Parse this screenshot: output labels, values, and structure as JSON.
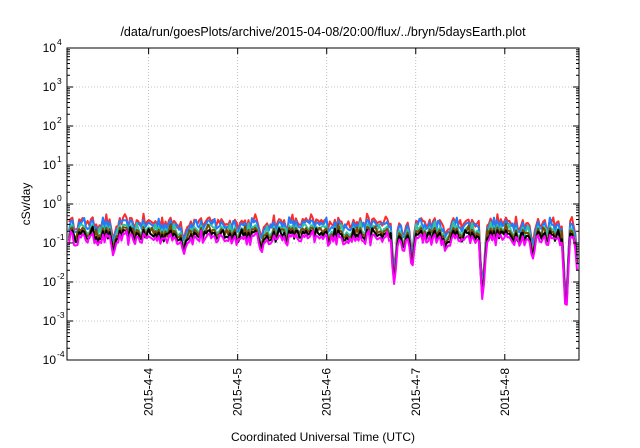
{
  "chart_data": {
    "type": "line",
    "title": "/data/run/goesPlots/archive/2015-04-08/20:00/flux/../bryn/5daysEarth.plot",
    "xlabel": "Coordinated Universal Time (UTC)",
    "ylabel": "cSv/day",
    "yscale": "log",
    "ylim": [
      0.0001,
      10000
    ],
    "xlim": [
      "2015-04-03T02:00",
      "2015-04-08T20:00"
    ],
    "grid": true,
    "legend": "none",
    "x_ticks": [
      "2015-4-4",
      "2015-4-5",
      "2015-4-6",
      "2015-4-7",
      "2015-4-8"
    ],
    "y_ticks": [
      {
        "base": "10",
        "exp": "-4"
      },
      {
        "base": "10",
        "exp": "-3"
      },
      {
        "base": "10",
        "exp": "-2"
      },
      {
        "base": "10",
        "exp": "-1"
      },
      {
        "base": "10",
        "exp": "0"
      },
      {
        "base": "10",
        "exp": "1"
      },
      {
        "base": "10",
        "exp": "2"
      },
      {
        "base": "10",
        "exp": "3"
      },
      {
        "base": "10",
        "exp": "4"
      }
    ],
    "series": [
      {
        "color": "#ff2a2a",
        "level": 0.34
      },
      {
        "color": "#1e7cff",
        "level": 0.29
      },
      {
        "color": "#2ec4a0",
        "level": 0.22
      },
      {
        "color": "#7a4a00",
        "level": 0.19
      },
      {
        "color": "#000000",
        "level": 0.16
      },
      {
        "color": "#ff00ff",
        "level": 0.13
      }
    ],
    "dips": [
      {
        "x": "2015-04-03T14:30",
        "value": 0.045
      },
      {
        "x": "2015-04-04T09:30",
        "value": 0.05
      },
      {
        "x": "2015-04-05T06:30",
        "value": 0.055
      },
      {
        "x": "2015-04-06T18:15",
        "value": 0.007
      },
      {
        "x": "2015-04-06T20:45",
        "value": 0.055
      },
      {
        "x": "2015-04-06T23:00",
        "value": 0.02
      },
      {
        "x": "2015-04-07T08:00",
        "value": 0.055
      },
      {
        "x": "2015-04-07T18:00",
        "value": 0.0025
      },
      {
        "x": "2015-04-08T07:30",
        "value": 0.035
      },
      {
        "x": "2015-04-08T16:30",
        "value": 0.0009
      },
      {
        "x": "2015-04-08T19:50",
        "value": 0.009
      }
    ]
  }
}
